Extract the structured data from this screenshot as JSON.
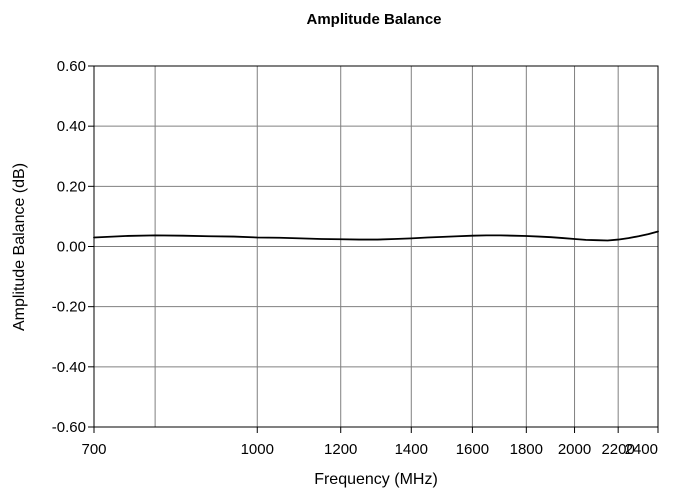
{
  "chart_data": {
    "type": "line",
    "title": "Amplitude Balance",
    "xlabel": "Frequency (MHz)",
    "ylabel": "Amplitude Balance (dB)",
    "x_scale": "log",
    "xlim": [
      700,
      2400
    ],
    "ylim": [
      -0.6,
      0.6
    ],
    "grid": true,
    "x_ticks": [
      700,
      1000,
      1200,
      1400,
      1600,
      1800,
      2000,
      2200,
      2400
    ],
    "x_tick_labels": [
      "700",
      "1000",
      "1200",
      "1400",
      "1600",
      "1800",
      "2000",
      "2200",
      "2400"
    ],
    "x_gridlines": [
      800,
      1000,
      1200,
      1400,
      1600,
      1800,
      2000,
      2200
    ],
    "y_ticks": [
      0.6,
      0.4,
      0.2,
      0.0,
      -0.2,
      -0.4,
      -0.6
    ],
    "y_tick_labels": [
      "0.60",
      "0.40",
      "0.20",
      "0.00",
      "-0.20",
      "-0.40",
      "-0.60"
    ],
    "line_color": "#000000",
    "series": [
      {
        "x": [
          700,
          750,
          800,
          850,
          900,
          950,
          1000,
          1050,
          1100,
          1150,
          1200,
          1250,
          1300,
          1350,
          1400,
          1450,
          1500,
          1550,
          1600,
          1650,
          1700,
          1750,
          1800,
          1850,
          1900,
          1950,
          2000,
          2050,
          2100,
          2150,
          2200,
          2250,
          2300,
          2350,
          2400
        ],
        "y": [
          0.03,
          0.035,
          0.037,
          0.036,
          0.034,
          0.033,
          0.03,
          0.029,
          0.027,
          0.025,
          0.024,
          0.023,
          0.023,
          0.025,
          0.027,
          0.03,
          0.032,
          0.034,
          0.036,
          0.037,
          0.037,
          0.036,
          0.035,
          0.033,
          0.031,
          0.028,
          0.025,
          0.022,
          0.021,
          0.02,
          0.023,
          0.028,
          0.034,
          0.041,
          0.05
        ]
      }
    ]
  }
}
